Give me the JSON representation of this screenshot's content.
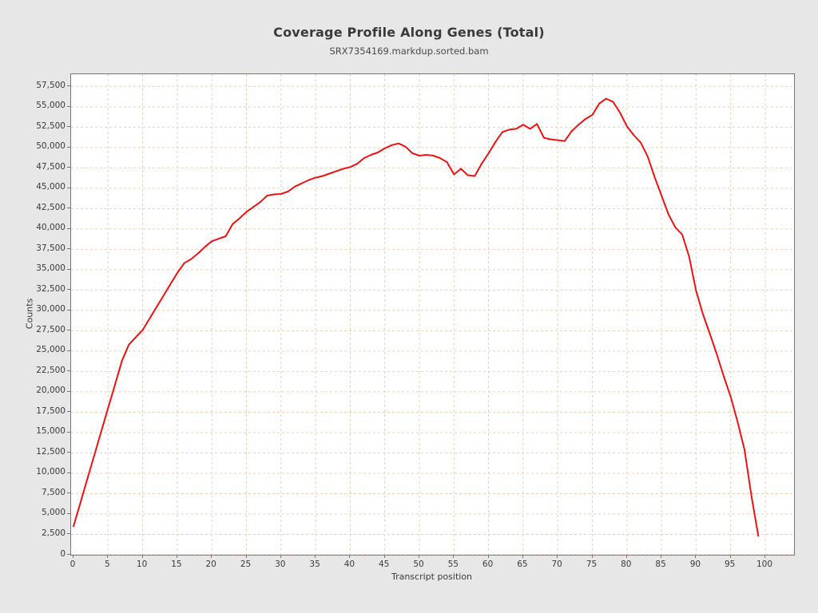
{
  "chart_data": {
    "type": "line",
    "title": "Coverage Profile Along Genes (Total)",
    "subtitle": "SRX7354169.markdup.sorted.bam",
    "xlabel": "Transcript position",
    "ylabel": "Counts",
    "x_start": 0,
    "x_step": 1,
    "series": [
      {
        "name": "SRX7354169.markdup.sorted.bam",
        "color": "#ee1111",
        "values": [
          3500,
          6400,
          9300,
          12200,
          15100,
          18000,
          20900,
          23800,
          25800,
          26700,
          27600,
          29000,
          30400,
          31800,
          33200,
          34600,
          35800,
          36300,
          37000,
          37800,
          38500,
          38800,
          39100,
          40600,
          41300,
          42100,
          42700,
          43300,
          44100,
          44250,
          44300,
          44600,
          45200,
          45600,
          46000,
          46300,
          46500,
          46800,
          47100,
          47400,
          47600,
          48000,
          48700,
          49100,
          49400,
          49900,
          50300,
          50500,
          50100,
          49300,
          49000,
          49100,
          49000,
          48700,
          48200,
          46700,
          47400,
          46600,
          46500,
          48000,
          49300,
          50700,
          51900,
          52200,
          52300,
          52800,
          52300,
          52900,
          51200,
          51000,
          50900,
          50800,
          52000,
          52800,
          53500,
          54000,
          55400,
          56000,
          55600,
          54300,
          52600,
          51500,
          50600,
          48900,
          46400,
          44100,
          41800,
          40200,
          39300,
          36600,
          32400,
          29500,
          27100,
          24600,
          21900,
          19400,
          16300,
          12900,
          7200,
          2300
        ]
      }
    ],
    "x_ticks": [
      0,
      5,
      10,
      15,
      20,
      25,
      30,
      35,
      40,
      45,
      50,
      55,
      60,
      65,
      70,
      75,
      80,
      85,
      90,
      95,
      100
    ],
    "y_ticks": [
      0,
      2500,
      5000,
      7500,
      10000,
      12500,
      15000,
      17500,
      20000,
      22500,
      25000,
      27500,
      30000,
      32500,
      35000,
      37500,
      40000,
      42500,
      45000,
      47500,
      50000,
      52500,
      55000,
      57500
    ],
    "xlim": [
      0,
      104
    ],
    "ylim": [
      0,
      59000
    ],
    "grid": {
      "visible": true,
      "style": "dashed",
      "color": "#f5cda6"
    },
    "style": {
      "background": "#e7e7e7",
      "plot_background": "#ffffff",
      "frame_color": "#757575",
      "text_color": "#3a3a3a",
      "line_width": 2
    }
  }
}
